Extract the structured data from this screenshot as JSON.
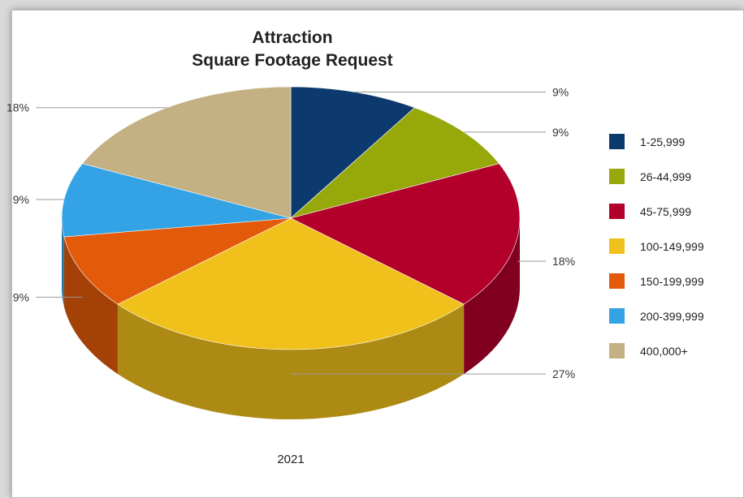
{
  "chart_data": {
    "type": "pie",
    "title_line1": "Attraction",
    "title_line2": "Square Footage Request",
    "category": "2021",
    "slices": [
      {
        "label": "1-25,999",
        "pct_label": "9%",
        "value": 9,
        "color": "#0d3a6e"
      },
      {
        "label": "26-44,999",
        "pct_label": "9%",
        "value": 9,
        "color": "#97a80b"
      },
      {
        "label": "45-75,999",
        "pct_label": "18%",
        "value": 18,
        "color": "#b3002b"
      },
      {
        "label": "100-149,999",
        "pct_label": "27%",
        "value": 27,
        "color": "#f0c01b"
      },
      {
        "label": "150-199,999",
        "pct_label": "9%",
        "value": 9,
        "color": "#e35a0a"
      },
      {
        "label": "200-399,999",
        "pct_label": "9%",
        "value": 9,
        "color": "#34a3e6"
      },
      {
        "label": "400,000+",
        "pct_label": "18%",
        "value": 18,
        "color": "#c3b183"
      }
    ],
    "legend_placement": "right",
    "style": "3d"
  }
}
